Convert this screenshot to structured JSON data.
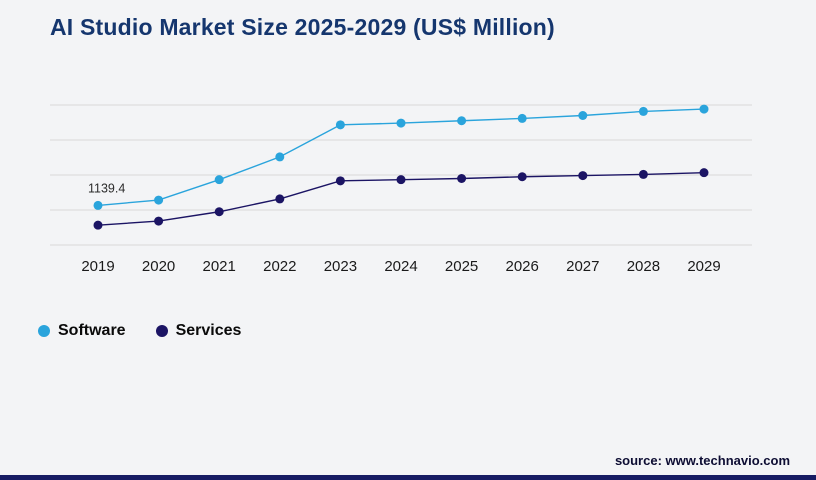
{
  "chart": {
    "title": "AI Studio Market Size 2025-2029 (US$ Million)"
  },
  "chart_data": {
    "type": "line",
    "title": "AI Studio Market Size 2025-2029 (US$ Million)",
    "xlabel": "",
    "ylabel": "",
    "categories": [
      "2019",
      "2020",
      "2021",
      "2022",
      "2023",
      "2024",
      "2025",
      "2026",
      "2027",
      "2028",
      "2029"
    ],
    "series": [
      {
        "name": "Software",
        "color": "#2aa4dc",
        "values": [
          1139.4,
          1185,
          1360,
          1555,
          1830,
          1845,
          1865,
          1885,
          1910,
          1945,
          1965
        ]
      },
      {
        "name": "Services",
        "color": "#1b1464",
        "values": [
          970,
          1005,
          1085,
          1195,
          1350,
          1360,
          1370,
          1385,
          1395,
          1405,
          1420
        ]
      }
    ],
    "ylim": [
      800,
      2000
    ],
    "ytick_step": 300,
    "grid": "horizontal",
    "legend_position": "bottom-left",
    "annotations": [
      {
        "series_index": 0,
        "point_index": 0,
        "text": "1139.4"
      }
    ]
  },
  "footer": {
    "source": "source: www.technavio.com"
  }
}
